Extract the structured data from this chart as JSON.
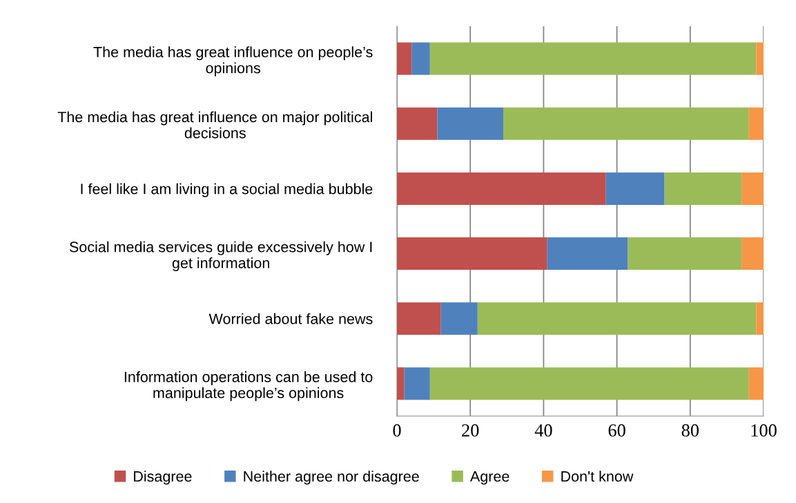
{
  "chart_data": {
    "type": "bar",
    "orientation": "horizontal",
    "stacked": true,
    "categories": [
      "The media has great influence on people’s opinions",
      "The media has great influence on major political decisions",
      "I feel like I am living in a social media bubble",
      "Social media services guide excessively how I get information",
      "Worried about fake news",
      "Information operations can be used to manipulate people’s opinions"
    ],
    "series": [
      {
        "name": "Disagree",
        "color": "#c0504d",
        "values": [
          4,
          11,
          57,
          41,
          12,
          2
        ]
      },
      {
        "name": "Neither agree nor disagree",
        "color": "#4f81bd",
        "values": [
          5,
          18,
          16,
          22,
          10,
          7
        ]
      },
      {
        "name": "Agree",
        "color": "#9bbb59",
        "values": [
          89,
          67,
          21,
          31,
          76,
          87
        ]
      },
      {
        "name": "Don't know",
        "color": "#f79646",
        "values": [
          2,
          4,
          6,
          6,
          2,
          4
        ]
      }
    ],
    "xlim": [
      0,
      100
    ],
    "xticks": [
      0,
      20,
      40,
      60,
      80,
      100
    ],
    "grid": "x",
    "legend": "bottom"
  }
}
